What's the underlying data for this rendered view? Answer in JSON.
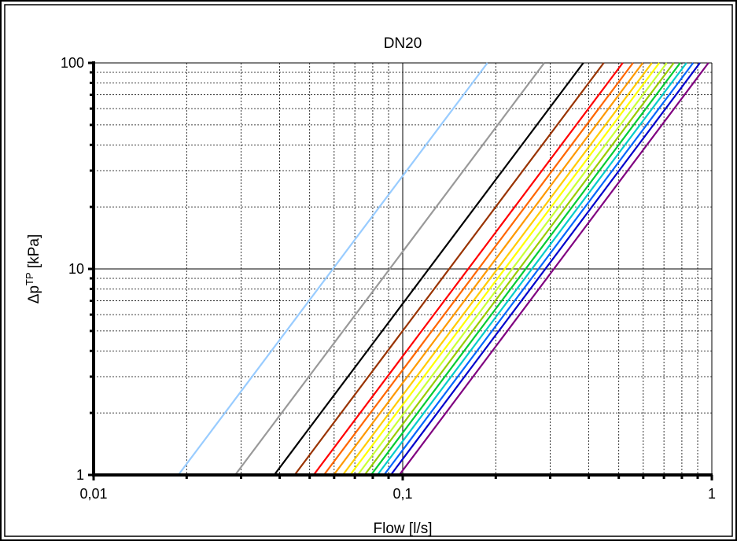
{
  "chart_data": {
    "type": "line",
    "title": "DN20",
    "xlabel": "Flow [l/s]",
    "ylabel": {
      "base": "Δp",
      "sup": "TP",
      "rest": " [kPa]"
    },
    "x_scale": "log",
    "y_scale": "log",
    "xlim": [
      0.01,
      1
    ],
    "ylim": [
      1,
      100
    ],
    "x_ticks": [
      {
        "value": 0.01,
        "label": "0,01"
      },
      {
        "value": 0.1,
        "label": "0,1"
      },
      {
        "value": 1,
        "label": "1"
      }
    ],
    "y_ticks": [
      {
        "value": 1,
        "label": "1"
      },
      {
        "value": 10,
        "label": "10"
      },
      {
        "value": 100,
        "label": "100"
      }
    ],
    "grid": true,
    "legend": "none",
    "series": [
      {
        "color": "#99ccff",
        "points": [
          [
            0.0188,
            1
          ],
          [
            0.188,
            100
          ]
        ]
      },
      {
        "color": "#999999",
        "points": [
          [
            0.0287,
            1
          ],
          [
            0.287,
            100
          ]
        ]
      },
      {
        "color": "#000000",
        "points": [
          [
            0.0384,
            1
          ],
          [
            0.384,
            100
          ]
        ]
      },
      {
        "color": "#993300",
        "points": [
          [
            0.0447,
            1
          ],
          [
            0.447,
            100
          ]
        ]
      },
      {
        "color": "#ff0000",
        "points": [
          [
            0.0515,
            1
          ],
          [
            0.515,
            100
          ]
        ]
      },
      {
        "color": "#ff6600",
        "points": [
          [
            0.0556,
            1
          ],
          [
            0.556,
            100
          ]
        ]
      },
      {
        "color": "#ff9900",
        "points": [
          [
            0.0598,
            1
          ],
          [
            0.598,
            100
          ]
        ]
      },
      {
        "color": "#ffcc00",
        "points": [
          [
            0.064,
            1
          ],
          [
            0.64,
            100
          ]
        ]
      },
      {
        "color": "#ffff00",
        "points": [
          [
            0.0676,
            1
          ],
          [
            0.676,
            100
          ]
        ]
      },
      {
        "color": "#ccff33",
        "points": [
          [
            0.0715,
            1
          ],
          [
            0.715,
            100
          ]
        ]
      },
      {
        "color": "#99cc00",
        "points": [
          [
            0.0753,
            1
          ],
          [
            0.753,
            100
          ]
        ]
      },
      {
        "color": "#00cc33",
        "points": [
          [
            0.079,
            1
          ],
          [
            0.79,
            100
          ]
        ]
      },
      {
        "color": "#00cccc",
        "points": [
          [
            0.0828,
            1
          ],
          [
            0.828,
            100
          ]
        ]
      },
      {
        "color": "#0066ff",
        "points": [
          [
            0.087,
            1
          ],
          [
            0.87,
            100
          ]
        ]
      },
      {
        "color": "#0000cc",
        "points": [
          [
            0.0915,
            1
          ],
          [
            0.915,
            100
          ]
        ]
      },
      {
        "color": "#800080",
        "points": [
          [
            0.0975,
            1
          ],
          [
            0.975,
            100
          ]
        ]
      }
    ]
  }
}
